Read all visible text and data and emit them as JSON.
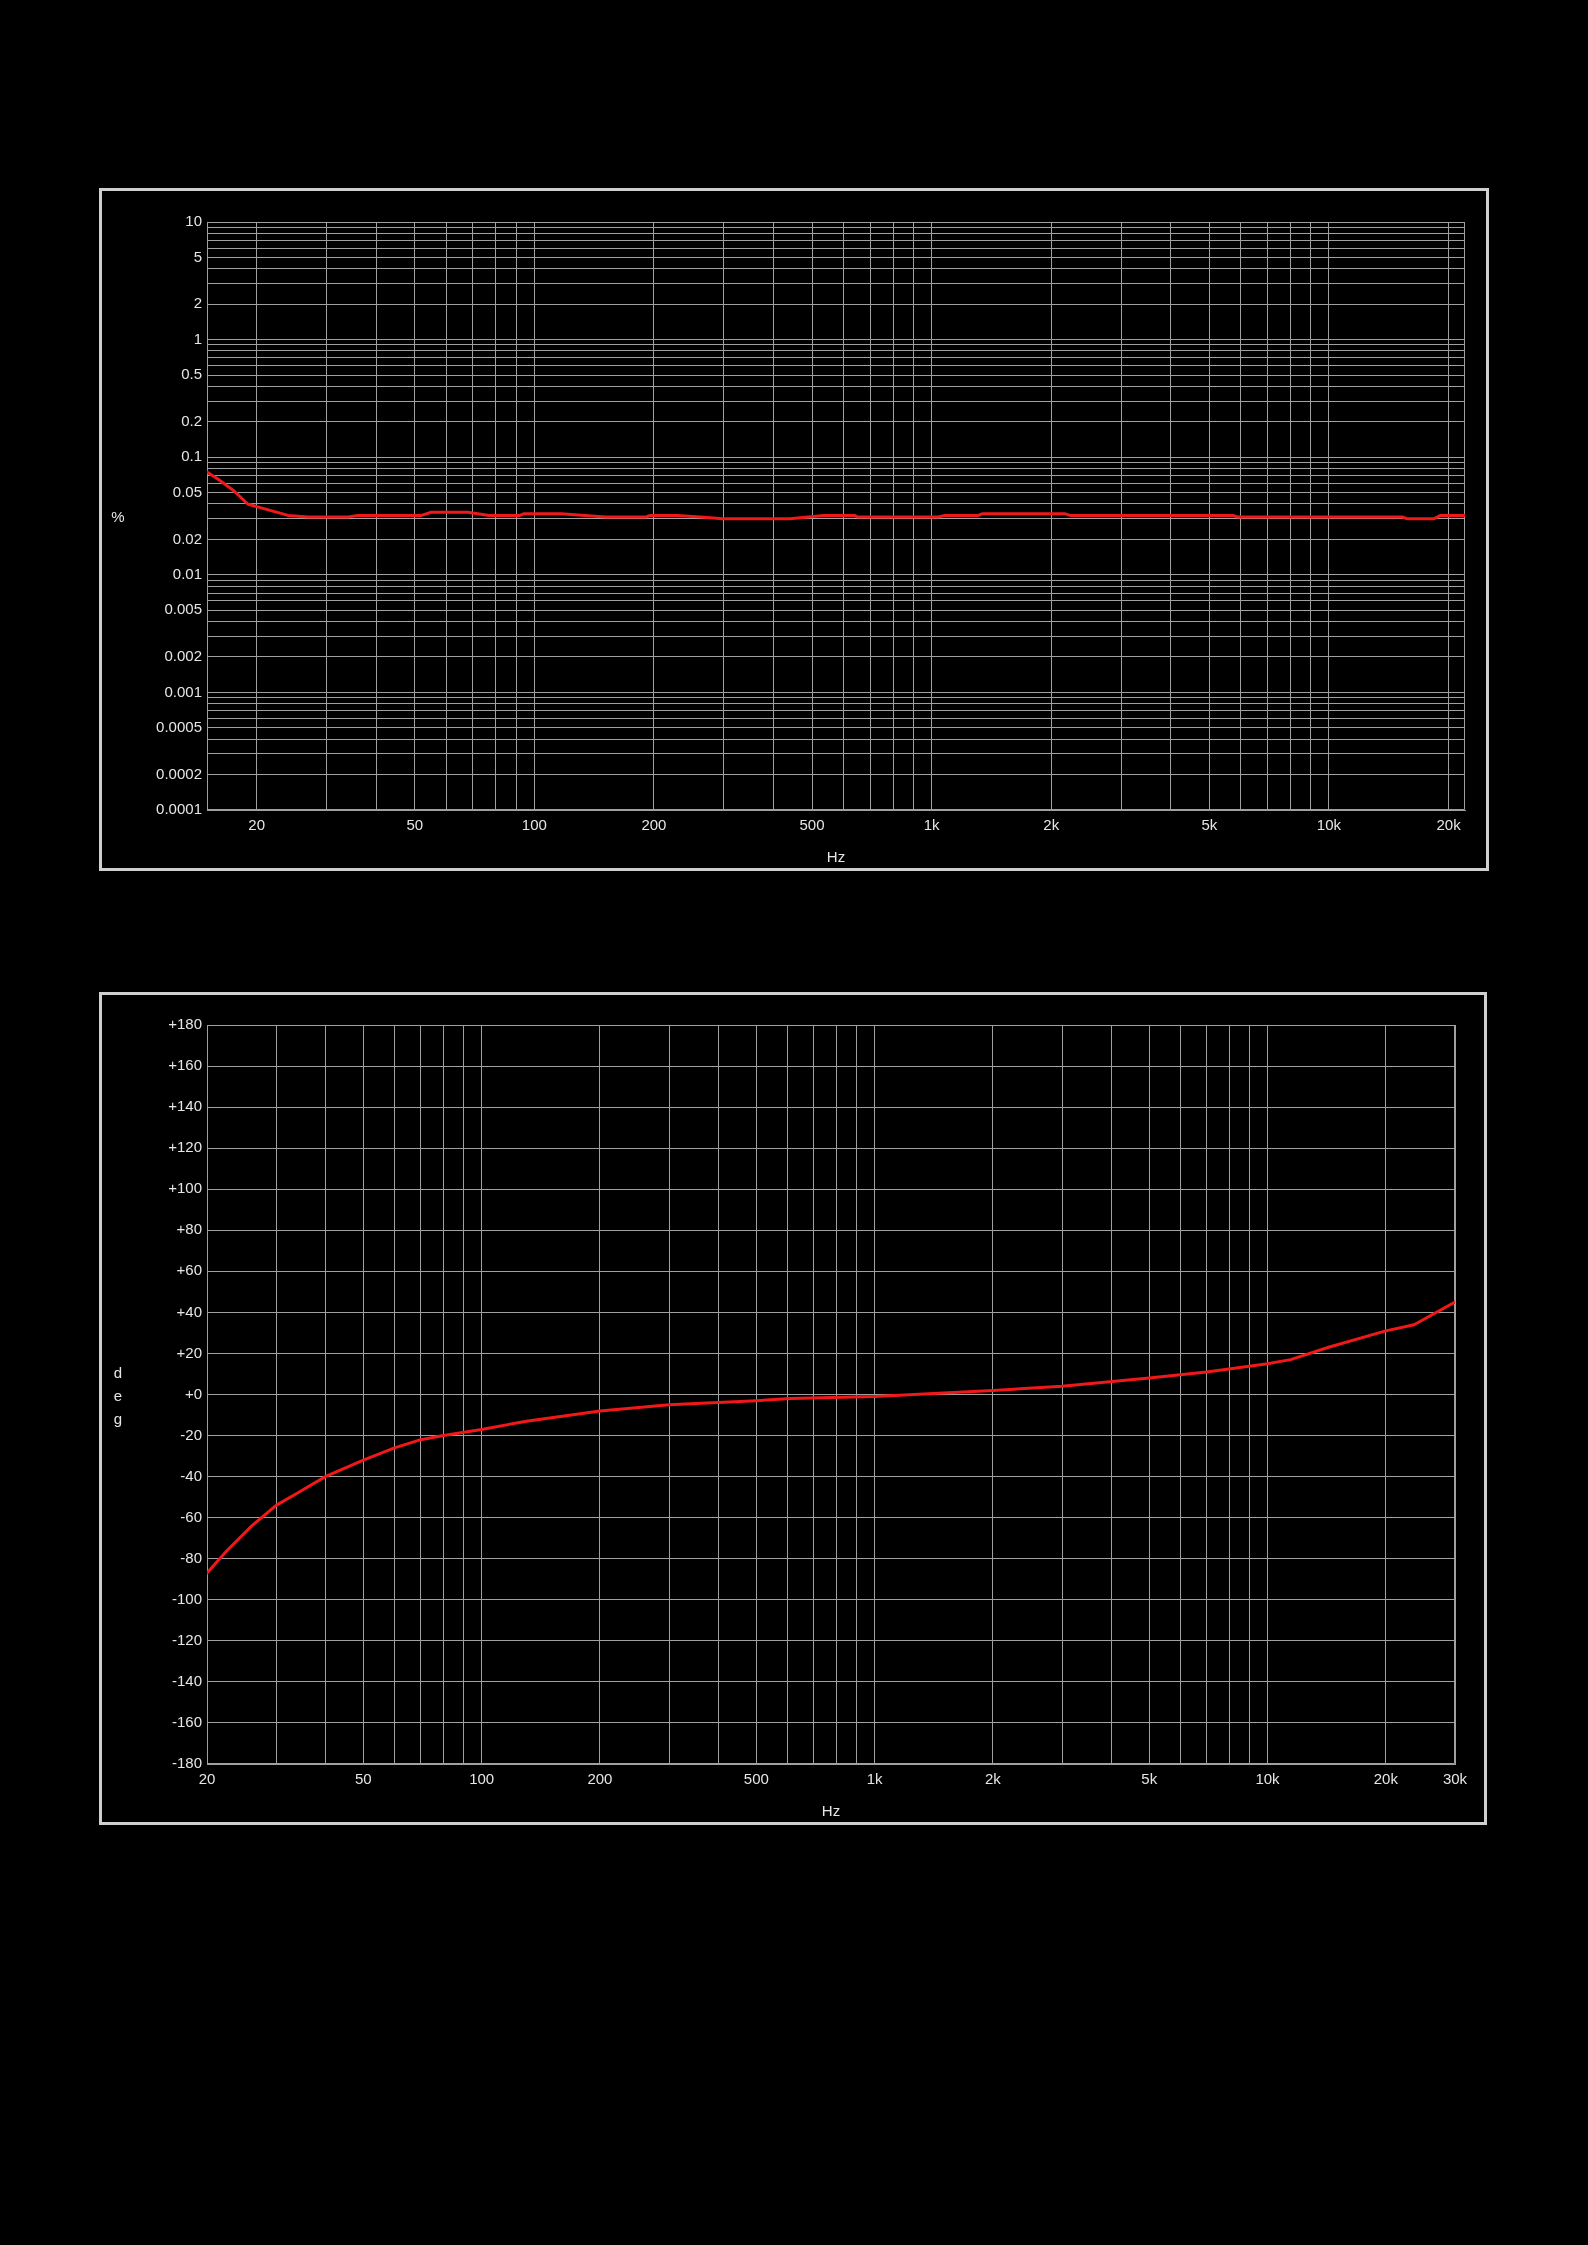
{
  "chart_data": [
    {
      "type": "line",
      "xlabel": "Hz",
      "ylabel": "%",
      "log": "xy",
      "grid": true,
      "xlim": [
        15,
        22000
      ],
      "ylim": [
        0.0001,
        10
      ],
      "xticks": [
        20,
        {
          "value": 30,
          "label": null
        },
        {
          "value": 40,
          "label": null
        },
        50,
        {
          "value": 60,
          "label": null
        },
        {
          "value": 70,
          "label": null
        },
        {
          "value": 80,
          "label": null
        },
        {
          "value": 90,
          "label": null
        },
        100,
        200,
        {
          "value": 300,
          "label": null
        },
        {
          "value": 400,
          "label": null
        },
        500,
        {
          "value": 600,
          "label": null
        },
        {
          "value": 700,
          "label": null
        },
        {
          "value": 800,
          "label": null
        },
        {
          "value": 900,
          "label": null
        },
        {
          "value": 1000,
          "label": "1k"
        },
        {
          "value": 2000,
          "label": "2k"
        },
        {
          "value": 3000,
          "label": null
        },
        {
          "value": 4000,
          "label": null
        },
        {
          "value": 5000,
          "label": "5k"
        },
        {
          "value": 6000,
          "label": null
        },
        {
          "value": 7000,
          "label": null
        },
        {
          "value": 8000,
          "label": null
        },
        {
          "value": 9000,
          "label": null
        },
        {
          "value": 10000,
          "label": "10k"
        },
        {
          "value": 20000,
          "label": "20k"
        }
      ],
      "yticks": [
        0.0001,
        0.0002,
        {
          "value": 0.0003,
          "label": null
        },
        {
          "value": 0.0004,
          "label": null
        },
        0.0005,
        {
          "value": 0.0006,
          "label": null
        },
        {
          "value": 0.0007,
          "label": null
        },
        {
          "value": 0.0008,
          "label": null
        },
        {
          "value": 0.0009,
          "label": null
        },
        0.001,
        0.002,
        {
          "value": 0.003,
          "label": null
        },
        {
          "value": 0.004,
          "label": null
        },
        0.005,
        {
          "value": 0.006,
          "label": null
        },
        {
          "value": 0.007,
          "label": null
        },
        {
          "value": 0.008,
          "label": null
        },
        {
          "value": 0.009,
          "label": null
        },
        0.01,
        0.02,
        {
          "value": 0.03,
          "label": null
        },
        {
          "value": 0.04,
          "label": null
        },
        0.05,
        {
          "value": 0.06,
          "label": null
        },
        {
          "value": 0.07,
          "label": null
        },
        {
          "value": 0.08,
          "label": null
        },
        {
          "value": 0.09,
          "label": null
        },
        0.1,
        0.2,
        {
          "value": 0.3,
          "label": null
        },
        {
          "value": 0.4,
          "label": null
        },
        0.5,
        {
          "value": 0.6,
          "label": null
        },
        {
          "value": 0.7,
          "label": null
        },
        {
          "value": 0.8,
          "label": null
        },
        {
          "value": 0.9,
          "label": null
        },
        1,
        2,
        {
          "value": 3,
          "label": null
        },
        {
          "value": 4,
          "label": null
        },
        5,
        {
          "value": 6,
          "label": null
        },
        {
          "value": 7,
          "label": null
        },
        {
          "value": 8,
          "label": null
        },
        {
          "value": 9,
          "label": null
        },
        10
      ],
      "x": [
        15,
        16,
        17.5,
        19,
        20,
        24,
        27,
        34,
        36,
        52,
        55,
        68,
        77,
        92,
        94,
        117,
        151,
        191,
        196,
        229,
        262,
        298,
        314,
        440,
        535,
        640,
        650,
        1040,
        1080,
        1310,
        1340,
        2170,
        2230,
        5730,
        5880,
        15300,
        15700,
        18400,
        19100,
        22000
      ],
      "series": [
        {
          "color": "#f01818",
          "values": [
            0.075,
            0.065,
            0.052,
            0.04,
            0.038,
            0.032,
            0.031,
            0.031,
            0.032,
            0.032,
            0.034,
            0.034,
            0.032,
            0.032,
            0.033,
            0.033,
            0.031,
            0.031,
            0.032,
            0.032,
            0.031,
            0.03,
            0.03,
            0.03,
            0.032,
            0.032,
            0.031,
            0.031,
            0.032,
            0.032,
            0.033,
            0.033,
            0.032,
            0.032,
            0.031,
            0.031,
            0.03,
            0.03,
            0.032,
            0.032
          ]
        }
      ]
    },
    {
      "type": "line",
      "xlabel": "Hz",
      "ylabel": "deg",
      "log": "x",
      "grid": true,
      "xlim": [
        20,
        30000
      ],
      "ylim": [
        -180,
        180
      ],
      "xticks": [
        20,
        {
          "value": 30,
          "label": null
        },
        {
          "value": 40,
          "label": null
        },
        50,
        {
          "value": 60,
          "label": null
        },
        {
          "value": 70,
          "label": null
        },
        {
          "value": 80,
          "label": null
        },
        {
          "value": 90,
          "label": null
        },
        100,
        200,
        {
          "value": 300,
          "label": null
        },
        {
          "value": 400,
          "label": null
        },
        500,
        {
          "value": 600,
          "label": null
        },
        {
          "value": 700,
          "label": null
        },
        {
          "value": 800,
          "label": null
        },
        {
          "value": 900,
          "label": null
        },
        {
          "value": 1000,
          "label": "1k"
        },
        {
          "value": 2000,
          "label": "2k"
        },
        {
          "value": 3000,
          "label": null
        },
        {
          "value": 4000,
          "label": null
        },
        {
          "value": 5000,
          "label": "5k"
        },
        {
          "value": 6000,
          "label": null
        },
        {
          "value": 7000,
          "label": null
        },
        {
          "value": 8000,
          "label": null
        },
        {
          "value": 9000,
          "label": null
        },
        {
          "value": 10000,
          "label": "10k"
        },
        {
          "value": 20000,
          "label": "20k"
        },
        {
          "value": 30000,
          "label": "30k"
        }
      ],
      "yticks": [
        -180,
        -160,
        -140,
        -120,
        -100,
        -80,
        -60,
        -40,
        -20,
        {
          "value": 0,
          "label": "+0"
        },
        {
          "value": 20,
          "label": "+20"
        },
        {
          "value": 40,
          "label": "+40"
        },
        {
          "value": 60,
          "label": "+60"
        },
        {
          "value": 80,
          "label": "+80"
        },
        {
          "value": 100,
          "label": "+100"
        },
        {
          "value": 120,
          "label": "+120"
        },
        {
          "value": 140,
          "label": "+140"
        },
        {
          "value": 160,
          "label": "+160"
        },
        {
          "value": 180,
          "label": "+180"
        }
      ],
      "x": [
        20,
        22.5,
        26,
        30,
        34,
        40,
        50,
        60,
        70,
        80,
        100,
        130,
        200,
        300,
        500,
        612,
        1000,
        2000,
        3000,
        5000,
        7000,
        10000,
        11450,
        14300,
        20000,
        23600,
        30000
      ],
      "series": [
        {
          "color": "#f01818",
          "values": [
            -87,
            -76,
            -64,
            -54,
            -48,
            -40,
            -32,
            -26,
            -22,
            -20,
            -17,
            -13,
            -8,
            -5,
            -3,
            -2,
            -1,
            2,
            4,
            8,
            11,
            15,
            17,
            23,
            31,
            34,
            45
          ]
        }
      ]
    }
  ]
}
